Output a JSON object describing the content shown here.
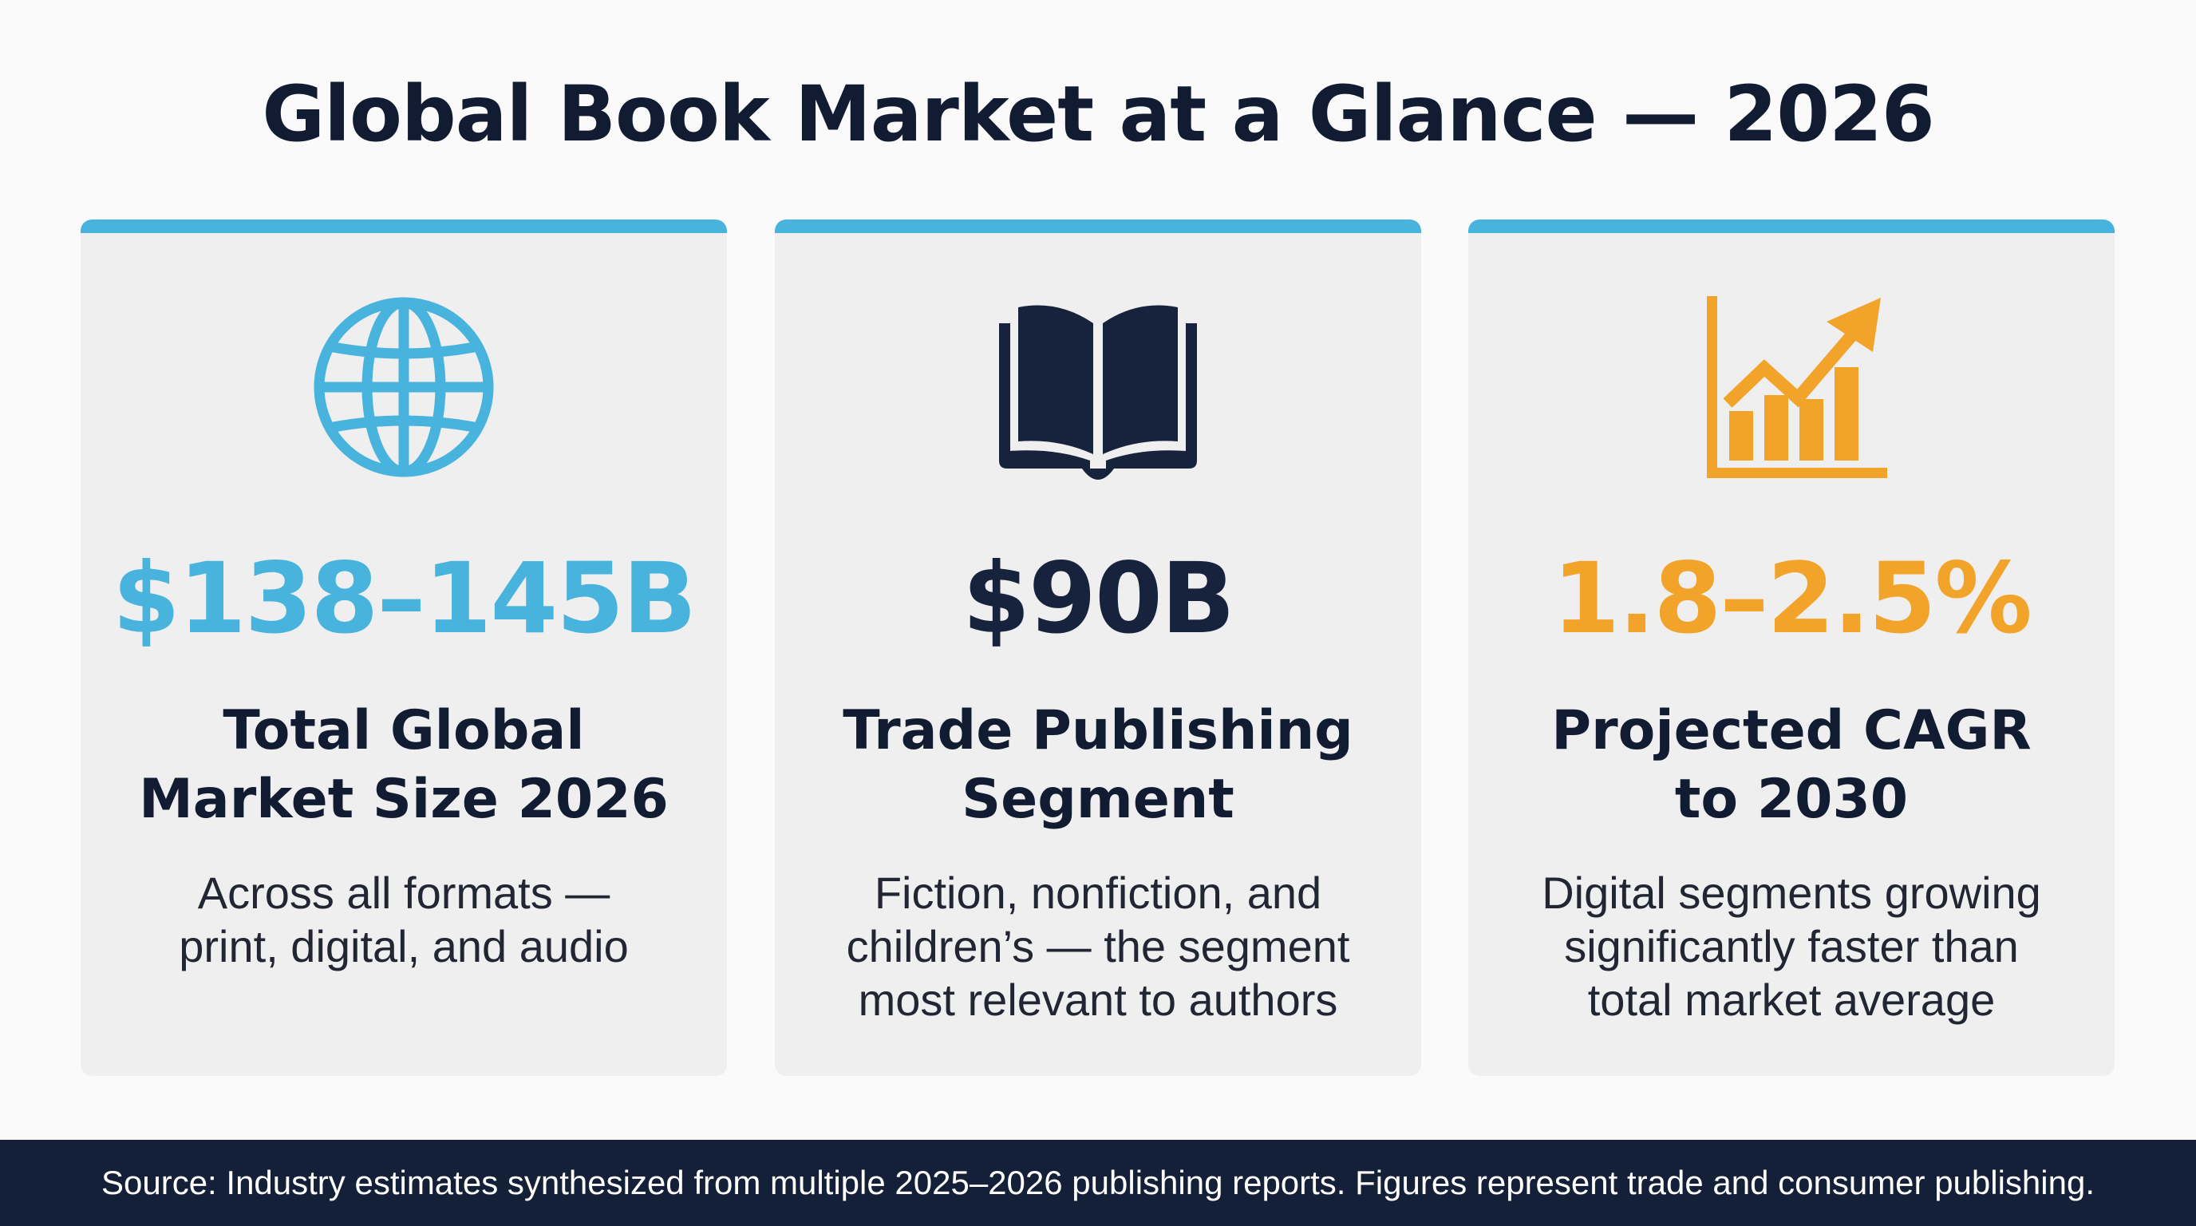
{
  "title": "Global Book Market at a Glance — 2026",
  "colors": {
    "blue": "#48b3dd",
    "navy": "#17223d",
    "orange": "#f2a42a",
    "card_background": "#efefef",
    "footer_background": "#142038"
  },
  "cards": [
    {
      "icon": "globe-icon",
      "value": "$138–145B",
      "value_color": "#48b3dd",
      "label": "Total Global\nMarket Size 2026",
      "description": "Across all formats —\nprint, digital, and audio"
    },
    {
      "icon": "open-book-icon",
      "value": "$90B",
      "value_color": "#17223d",
      "label": "Trade Publishing\nSegment",
      "description": "Fiction, nonfiction, and\nchildren’s — the segment\nmost relevant to authors"
    },
    {
      "icon": "growth-chart-icon",
      "value": "1.8–2.5%",
      "value_color": "#f2a42a",
      "label": "Projected CAGR\nto 2030",
      "description": "Digital segments growing\nsignificantly faster than\ntotal market average"
    }
  ],
  "footer": {
    "source": "Source: Industry estimates synthesized from multiple 2025–2026 publishing reports. Figures represent trade and consumer publishing."
  }
}
